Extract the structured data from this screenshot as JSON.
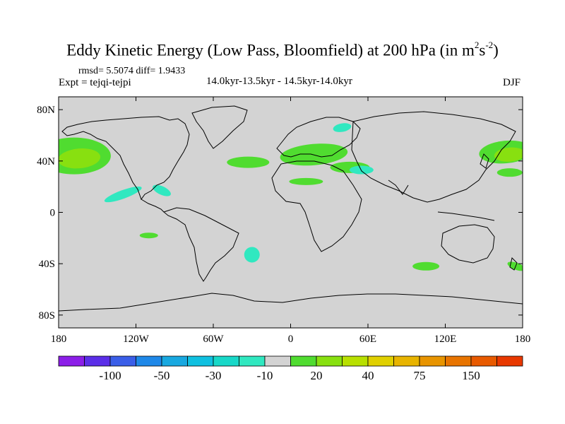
{
  "title": {
    "main": "Eddy Kinetic Energy (Low Pass, Bloomfield) at 200 hPa (in m",
    "sup1": "2",
    "s": "s",
    "sup2": "-2",
    "close": ")"
  },
  "stats": {
    "rmsd_line": "rmsd= 5.5074 diff= 1.9433",
    "expt_line": "Expt = tejqi-tejpi",
    "period_line": "14.0kyr-13.5kyr - 14.5kyr-14.0kyr",
    "season": "DJF"
  },
  "chart_data": {
    "type": "heatmap",
    "title": "Eddy Kinetic Energy (Low Pass, Bloomfield) at 200 hPa (in m^2 s^-2)",
    "projection": "cylindrical-equidistant",
    "xlim": [
      -180,
      180
    ],
    "ylim": [
      -90,
      90
    ],
    "x_ticks": [
      -180,
      -120,
      -60,
      0,
      60,
      120,
      180
    ],
    "x_tick_labels": [
      "180",
      "120W",
      "60W",
      "0",
      "60E",
      "120E",
      "180"
    ],
    "y_ticks": [
      80,
      40,
      0,
      -40,
      -80
    ],
    "y_tick_labels": [
      "80N",
      "40N",
      "0",
      "40S",
      "80S"
    ],
    "background_level_color": "#d3d3d3",
    "regions": [
      {
        "name": "north-pacific-east",
        "lon": -168,
        "lat": 44,
        "level": "10-20"
      },
      {
        "name": "north-pacific-east-core",
        "lon": -164,
        "lat": 42,
        "level": "20-30"
      },
      {
        "name": "north-atlantic",
        "lon": -33,
        "lat": 39,
        "level": "10-20"
      },
      {
        "name": "europe",
        "lon": 18,
        "lat": 45,
        "level": "10-20"
      },
      {
        "name": "north-africa",
        "lon": 12,
        "lat": 24,
        "level": "10-20"
      },
      {
        "name": "middle-east",
        "lon": 46,
        "lat": 35,
        "level": "10-20"
      },
      {
        "name": "north-pacific-west",
        "lon": 167,
        "lat": 47,
        "level": "10-20"
      },
      {
        "name": "north-pacific-west-core",
        "lon": 170,
        "lat": 45,
        "level": "20-30"
      },
      {
        "name": "nw-pacific-low",
        "lon": 170,
        "lat": 31,
        "level": "10-20"
      },
      {
        "name": "east-pacific-neg",
        "lon": -130,
        "lat": 14,
        "level": "-20--10"
      },
      {
        "name": "mexico-gulf-neg",
        "lon": -100,
        "lat": 17,
        "level": "-20--10"
      },
      {
        "name": "barents-neg",
        "lon": 40,
        "lat": 66,
        "level": "-20--10"
      },
      {
        "name": "east-asia-neg",
        "lon": 55,
        "lat": 33,
        "level": "-20--10"
      },
      {
        "name": "south-atlantic-neg",
        "lon": -30,
        "lat": -33,
        "level": "-20--10"
      },
      {
        "name": "south-pacific",
        "lon": -110,
        "lat": -18,
        "level": "10-20"
      },
      {
        "name": "south-indian",
        "lon": 105,
        "lat": -42,
        "level": "10-20"
      },
      {
        "name": "south-west-pacific",
        "lon": 175,
        "lat": -42,
        "level": "10-20"
      }
    ],
    "colorbar": {
      "colors": [
        "#8c1ee8",
        "#5b2ee8",
        "#3a5ee8",
        "#1e88e8",
        "#18a8e0",
        "#10c0e0",
        "#18d8c8",
        "#30e8c0",
        "#d3d3d3",
        "#50dc30",
        "#88e010",
        "#b8e000",
        "#e0d000",
        "#e8b400",
        "#e89400",
        "#e87400",
        "#e85a00",
        "#e83800"
      ],
      "tick_labels": [
        "-100",
        "-50",
        "-30",
        "-10",
        "20",
        "40",
        "75",
        "150"
      ]
    }
  }
}
